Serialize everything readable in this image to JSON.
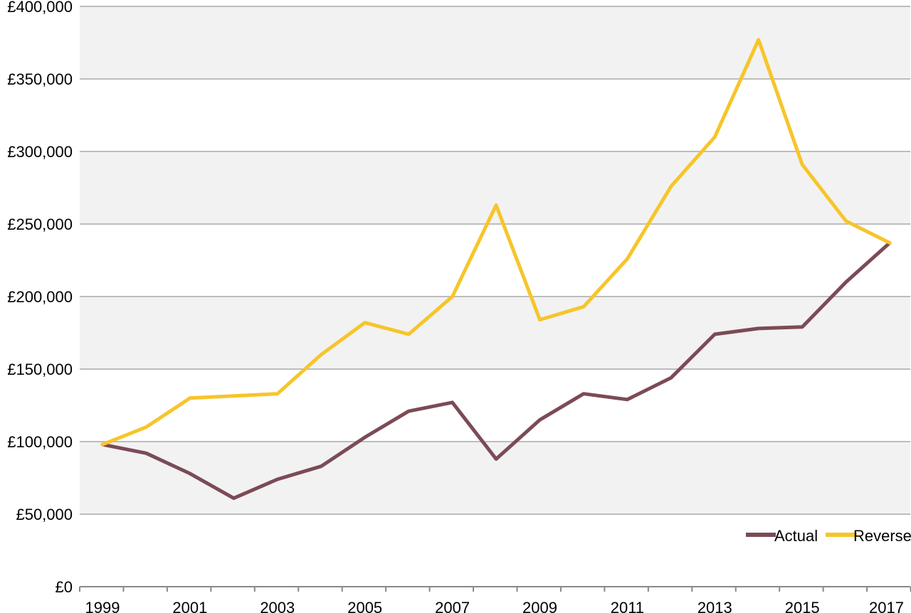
{
  "chart_data": {
    "type": "line",
    "title": "",
    "xlabel": "",
    "ylabel": "",
    "x": [
      1999,
      2000,
      2001,
      2002,
      2003,
      2004,
      2005,
      2006,
      2007,
      2008,
      2009,
      2010,
      2011,
      2012,
      2013,
      2014,
      2015,
      2016,
      2017
    ],
    "x_tick_labels": [
      "1999",
      "2001",
      "2003",
      "2005",
      "2007",
      "2009",
      "2011",
      "2013",
      "2015",
      "2017"
    ],
    "ylim": [
      0,
      400000
    ],
    "y_ticks": [
      0,
      50000,
      100000,
      150000,
      200000,
      250000,
      300000,
      350000,
      400000
    ],
    "y_tick_labels": [
      "£0",
      "£50,000",
      "£100,000",
      "£150,000",
      "£200,000",
      "£250,000",
      "£300,000",
      "£350,000",
      "£400,000"
    ],
    "grid": true,
    "background_bands": "alternating",
    "legend_position": "bottom-right",
    "series": [
      {
        "name": "Actual",
        "color": "#7b4b56",
        "values": [
          98000,
          92000,
          78000,
          61000,
          74000,
          83000,
          103000,
          121000,
          127000,
          88000,
          115000,
          133000,
          129000,
          144000,
          174000,
          178000,
          179000,
          210000,
          237000
        ]
      },
      {
        "name": "Reversed",
        "color": "#f7c52a",
        "values": [
          98000,
          110000,
          130000,
          131500,
          133000,
          160000,
          182000,
          174000,
          200000,
          263000,
          184000,
          193000,
          226000,
          276000,
          310000,
          377000,
          291000,
          252000,
          237000
        ]
      }
    ]
  }
}
